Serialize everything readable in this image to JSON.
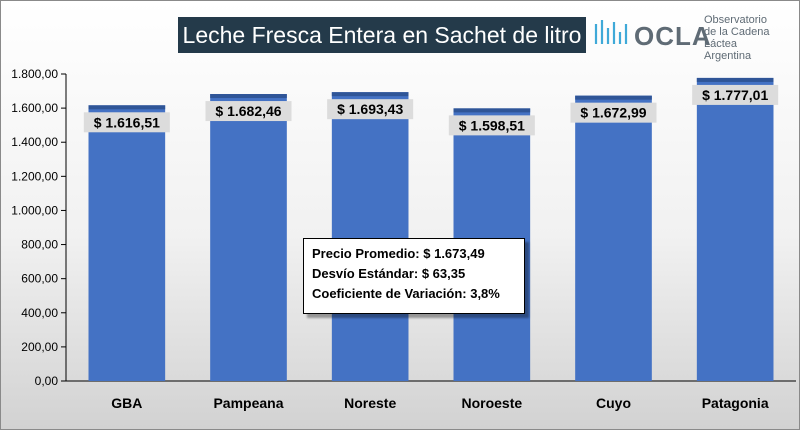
{
  "header": {
    "title": "Leche Fresca Entera en Sachet de litro"
  },
  "logo": {
    "mark": "OCLA",
    "line1": "Observatorio",
    "line2": "de la Cadena Láctea",
    "line3": "Argentina",
    "icon": "ocla-wave-logo-icon"
  },
  "stats": {
    "promedio": "Precio Promedio: $ 1.673,49",
    "desvio": "Desvío Estándar: $ 63,35",
    "coeficiente": "Coeficiente de Variación: 3,8%"
  },
  "chart_data": {
    "type": "bar",
    "title": "Leche Fresca Entera en Sachet de litro",
    "xlabel": "",
    "ylabel": "",
    "categories": [
      "GBA",
      "Pampeana",
      "Noreste",
      "Noroeste",
      "Cuyo",
      "Patagonia"
    ],
    "values": [
      1616.51,
      1682.46,
      1693.43,
      1598.51,
      1672.99,
      1777.01
    ],
    "value_labels": [
      "$ 1.616,51",
      "$ 1.682,46",
      "$ 1.693,43",
      "$ 1.598,51",
      "$ 1.672,99",
      "$ 1.777,01"
    ],
    "ylim": [
      0,
      1800
    ],
    "yticks": [
      0,
      200,
      400,
      600,
      800,
      1000,
      1200,
      1400,
      1600,
      1800
    ],
    "ytick_labels": [
      "0,00",
      "200,00",
      "400,00",
      "600,00",
      "800,00",
      "1.000,00",
      "1.200,00",
      "1.400,00",
      "1.600,00",
      "1.800,00"
    ],
    "bar_color": "#4472c4",
    "bar_top_color": "#2f5597",
    "grid": false,
    "legend": false
  }
}
